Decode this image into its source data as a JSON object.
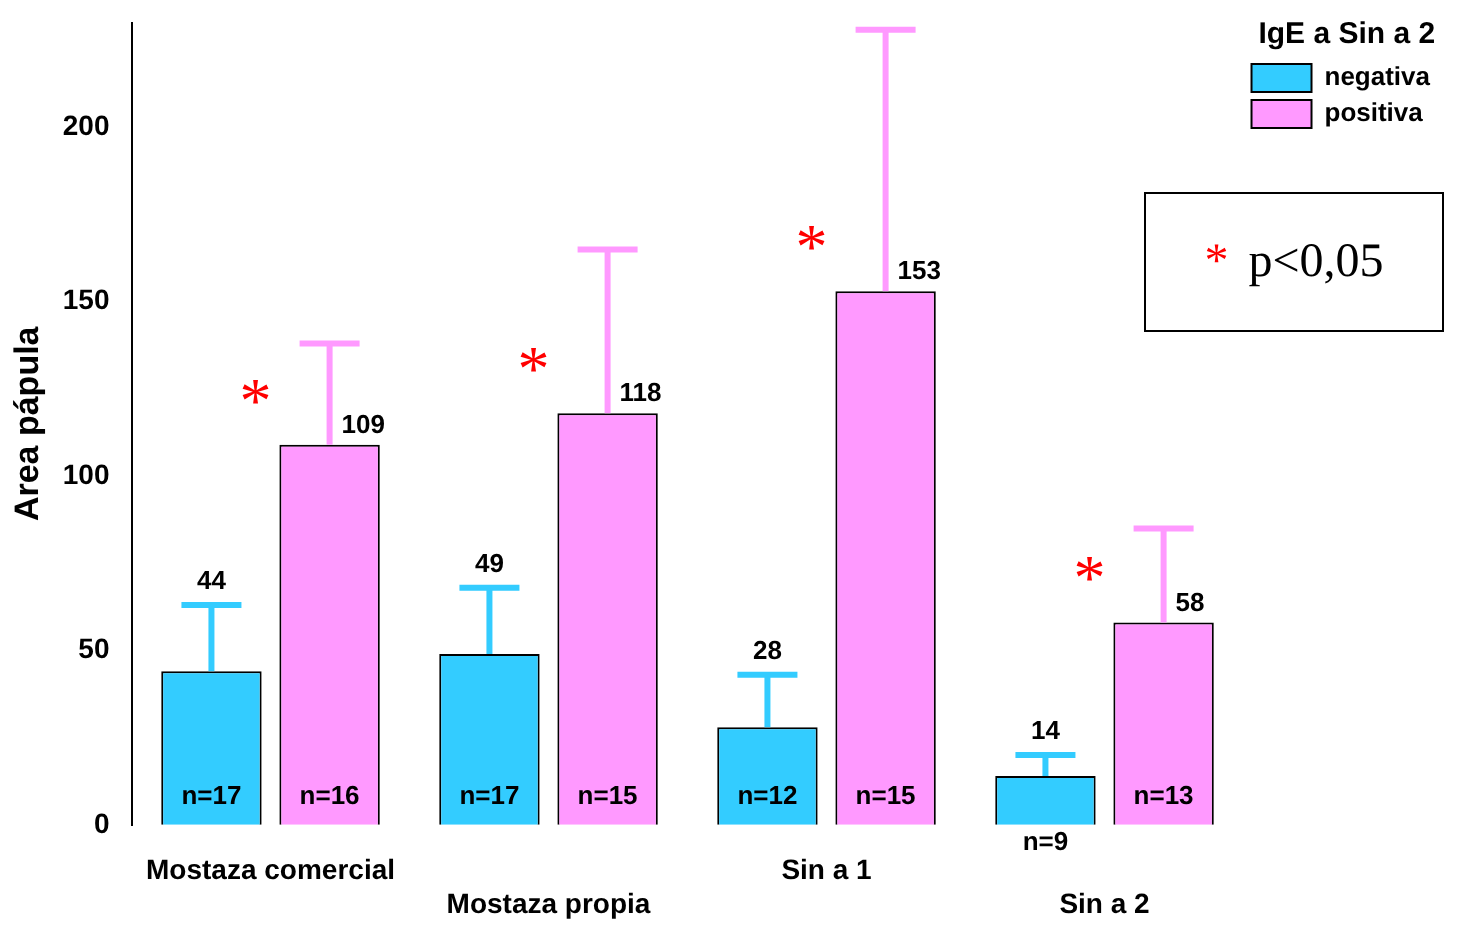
{
  "chart_data": {
    "type": "bar",
    "ylabel": "Area pápula",
    "legend_title": "IgE a Sin a 2",
    "legend": "top right",
    "categories": [
      "Mostaza comercial",
      "Mostaza propia",
      "Sin a 1",
      "Sin a 2"
    ],
    "series": [
      {
        "name": "negativa",
        "color": "#33ccff",
        "values": [
          44,
          49,
          28,
          14
        ],
        "errors": [
          [
            44,
            63
          ],
          [
            49,
            68
          ],
          [
            28,
            43
          ],
          [
            14,
            20
          ]
        ]
      },
      {
        "name": "positiva",
        "color": "#ff99ff",
        "values": [
          109,
          118,
          153,
          58
        ],
        "errors": [
          [
            109,
            138
          ],
          [
            118,
            165
          ],
          [
            153,
            228
          ],
          [
            58,
            85
          ]
        ]
      }
    ],
    "data_labels": true,
    "ylim": [
      0,
      230
    ],
    "yticks": [
      0,
      50,
      100,
      150,
      200
    ],
    "grid": false,
    "annotations": [
      "* p<0,05",
      "n=17",
      "n=16",
      "*",
      "n=17",
      "n=15",
      "*",
      "n=12",
      "n=15",
      "*",
      "n=9",
      "n=13",
      "*"
    ]
  }
}
